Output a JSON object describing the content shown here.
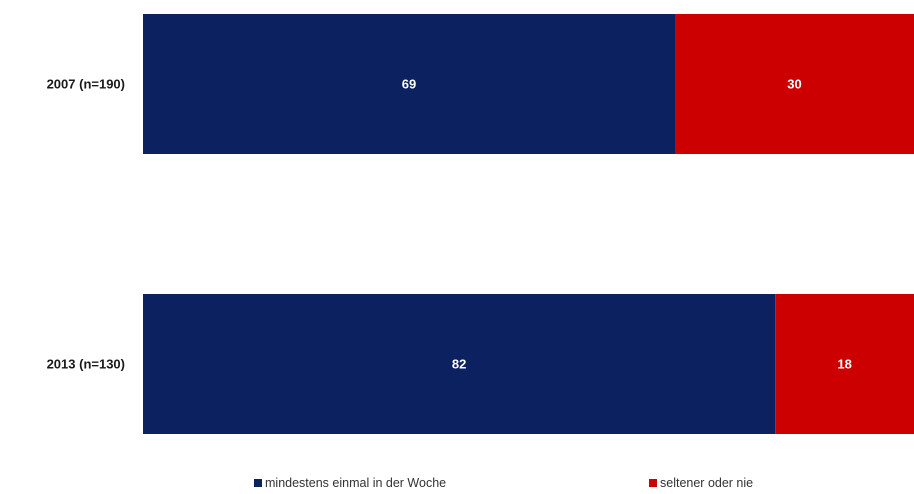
{
  "chart_data": {
    "type": "bar",
    "orientation": "horizontal",
    "stacked": true,
    "categories": [
      "2007 (n=190)",
      "2013 (n=130)"
    ],
    "series": [
      {
        "name": "mindestens einmal in der Woche",
        "values": [
          69,
          82
        ],
        "color": "#0b2160"
      },
      {
        "name": "seltener oder nie",
        "values": [
          30,
          18
        ],
        "color": "#cc0000"
      }
    ],
    "xlim": [
      0,
      100
    ],
    "grid": false,
    "legend_position": "bottom"
  }
}
